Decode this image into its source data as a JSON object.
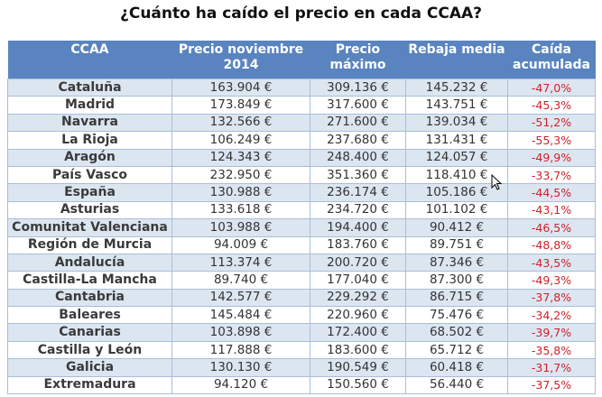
{
  "title": "¿Cuánto ha caído el precio en cada CCAA?",
  "chart_data": {
    "type": "table",
    "title": "¿Cuánto ha caído el precio en cada CCAA?",
    "columns": [
      "CCAA",
      "Precio noviembre 2014",
      "Precio máximo",
      "Rebaja media",
      "Caída acumulada"
    ],
    "rows": [
      [
        "Cataluña",
        "163.904 €",
        "309.136 €",
        "145.232 €",
        "-47,0%"
      ],
      [
        "Madrid",
        "173.849 €",
        "317.600 €",
        "143.751 €",
        "-45,3%"
      ],
      [
        "Navarra",
        "132.566 €",
        "271.600 €",
        "139.034 €",
        "-51,2%"
      ],
      [
        "La Rioja",
        "106.249 €",
        "237.680 €",
        "131.431 €",
        "-55,3%"
      ],
      [
        "Aragón",
        "124.343 €",
        "248.400 €",
        "124.057 €",
        "-49,9%"
      ],
      [
        "País Vasco",
        "232.950 €",
        "351.360 €",
        "118.410 €",
        "-33,7%"
      ],
      [
        "España",
        "130.988 €",
        "236.174 €",
        "105.186 €",
        "-44,5%"
      ],
      [
        "Asturias",
        "133.618 €",
        "234.720 €",
        "101.102 €",
        "-43,1%"
      ],
      [
        "Comunitat Valenciana",
        "103.988 €",
        "194.400 €",
        "90.412 €",
        "-46,5%"
      ],
      [
        "Región de Murcia",
        "94.009 €",
        "183.760 €",
        "89.751 €",
        "-48,8%"
      ],
      [
        "Andalucía",
        "113.374 €",
        "200.720 €",
        "87.346 €",
        "-43,5%"
      ],
      [
        "Castilla-La Mancha",
        "89.740 €",
        "177.040 €",
        "87.300 €",
        "-49,3%"
      ],
      [
        "Cantabria",
        "142.577 €",
        "229.292 €",
        "86.715 €",
        "-37,8%"
      ],
      [
        "Baleares",
        "145.484 €",
        "220.960 €",
        "75.476 €",
        "-34,2%"
      ],
      [
        "Canarias",
        "103.898 €",
        "172.400 €",
        "68.502 €",
        "-39,7%"
      ],
      [
        "Castilla y León",
        "117.888 €",
        "183.600 €",
        "65.712 €",
        "-35,8%"
      ],
      [
        "Galicia",
        "130.130 €",
        "190.549 €",
        "60.418 €",
        "-31,7%"
      ],
      [
        "Extremadura",
        "94.120 €",
        "150.560 €",
        "56.440 €",
        "-37,5%"
      ]
    ],
    "colors": {
      "header": "#5a84bf",
      "alt_row": "#dce6f1",
      "negative": "#d0202a"
    }
  }
}
